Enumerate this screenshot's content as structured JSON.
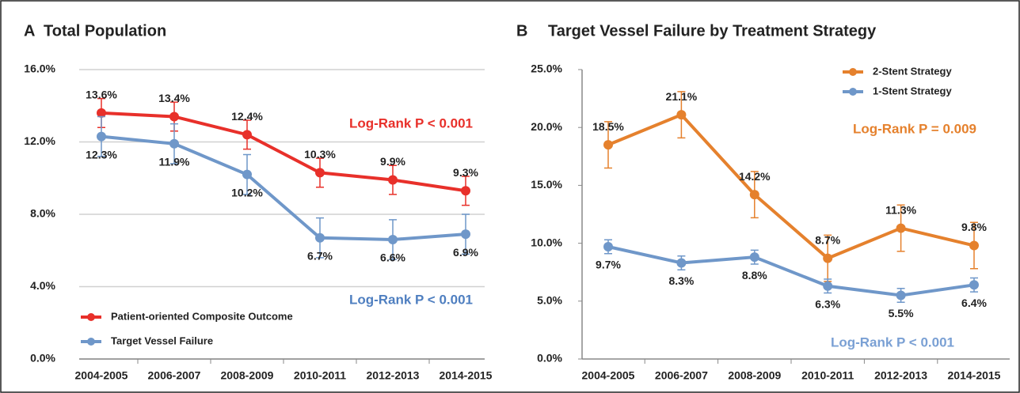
{
  "chart_data": [
    {
      "type": "line",
      "panel": "A",
      "title": "Total Population",
      "categories": [
        "2004-2005",
        "2006-2007",
        "2008-2009",
        "2010-2011",
        "2012-2013",
        "2014-2015"
      ],
      "ylim": [
        0,
        16
      ],
      "yticks": [
        {
          "value": 0,
          "label": "0.0%"
        },
        {
          "value": 4,
          "label": "4.0%"
        },
        {
          "value": 8,
          "label": "8.0%"
        },
        {
          "value": 12,
          "label": "12.0%"
        },
        {
          "value": 16,
          "label": "16.0%"
        }
      ],
      "grid": true,
      "legend": "lower left",
      "series": [
        {
          "name": "Patient-oriented Composite Outcome",
          "color": "#e8302a",
          "label_side": "above",
          "values": [
            13.6,
            13.4,
            12.4,
            10.3,
            9.9,
            9.3
          ],
          "value_labels": [
            "13.6%",
            "13.4%",
            "12.4%",
            "10.3%",
            "9.9%",
            "9.3%"
          ],
          "errors": [
            0.8,
            0.8,
            0.8,
            0.8,
            0.8,
            0.8
          ]
        },
        {
          "name": "Target Vessel Failure",
          "color": "#6f97c9",
          "label_side": "below",
          "values": [
            12.3,
            11.9,
            10.2,
            6.7,
            6.6,
            6.9
          ],
          "value_labels": [
            "12.3%",
            "11.9%",
            "10.2%",
            "6.7%",
            "6.6%",
            "6.9%"
          ],
          "errors": [
            1.1,
            1.1,
            1.1,
            1.1,
            1.1,
            1.1
          ]
        }
      ],
      "annotations": [
        {
          "text": "Log-Rank P < 0.001",
          "color": "#e8302a"
        },
        {
          "text": "Log-Rank P < 0.001",
          "color": "#4f7fc0"
        }
      ]
    },
    {
      "type": "line",
      "panel": "B",
      "title": "Target Vessel Failure by Treatment Strategy",
      "categories": [
        "2004-2005",
        "2006-2007",
        "2008-2009",
        "2010-2011",
        "2012-2013",
        "2014-2015"
      ],
      "ylim": [
        0,
        25
      ],
      "yticks": [
        {
          "value": 0,
          "label": "0.0%"
        },
        {
          "value": 5,
          "label": "5.0%"
        },
        {
          "value": 10,
          "label": "10.0%"
        },
        {
          "value": 15,
          "label": "15.0%"
        },
        {
          "value": 20,
          "label": "20.0%"
        },
        {
          "value": 25,
          "label": "25.0%"
        }
      ],
      "grid": false,
      "legend": "upper right",
      "series": [
        {
          "name": "2-Stent Strategy",
          "color": "#e5812d",
          "label_side": "above",
          "values": [
            18.5,
            21.1,
            14.2,
            8.7,
            11.3,
            9.8
          ],
          "value_labels": [
            "18.5%",
            "21.1%",
            "14.2%",
            "8.7%",
            "11.3%",
            "9.8%"
          ],
          "errors": [
            2.0,
            2.0,
            2.0,
            2.0,
            2.0,
            2.0
          ]
        },
        {
          "name": "1-Stent Strategy",
          "color": "#6f97c9",
          "label_side": "below",
          "values": [
            9.7,
            8.3,
            8.8,
            6.3,
            5.5,
            6.4
          ],
          "value_labels": [
            "9.7%",
            "8.3%",
            "8.8%",
            "6.3%",
            "5.5%",
            "6.4%"
          ],
          "errors": [
            0.6,
            0.6,
            0.6,
            0.6,
            0.6,
            0.6
          ]
        }
      ],
      "annotations": [
        {
          "text": "Log-Rank P = 0.009",
          "color": "#e5812d"
        },
        {
          "text": "Log-Rank P < 0.001",
          "color": "#7aa0d4"
        }
      ]
    }
  ]
}
